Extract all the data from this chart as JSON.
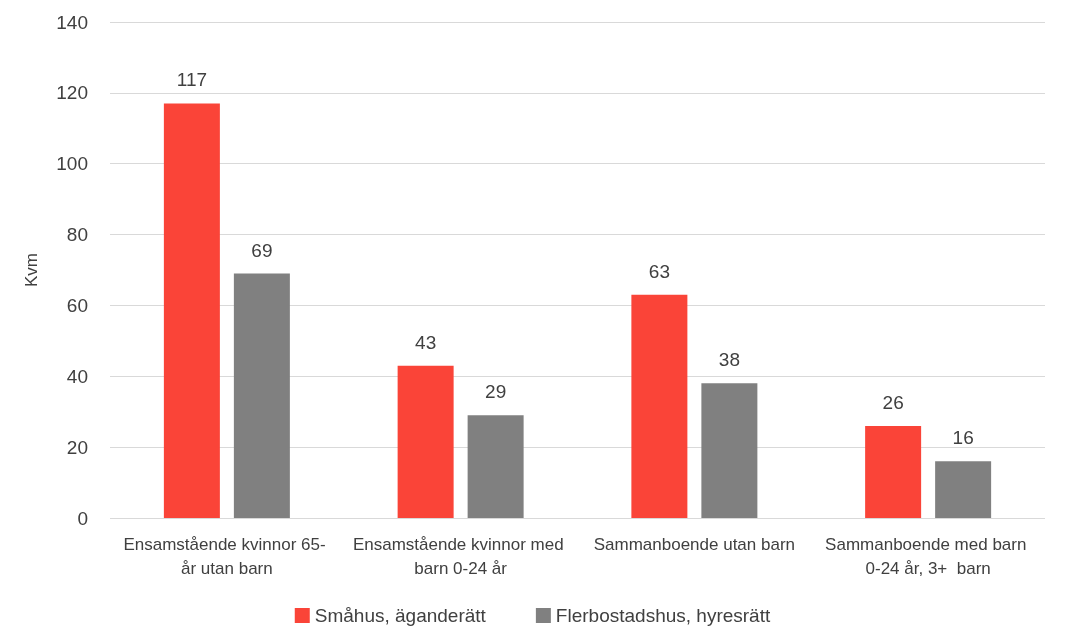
{
  "chart_data": {
    "type": "bar",
    "ylabel": "Kvm",
    "categories": [
      "Ensamstående kvinnor 65- år utan barn",
      "Ensamstående kvinnor med barn 0-24 år",
      "Sammanboende utan barn",
      "Sammanboende med barn 0-24 år, 3+  barn"
    ],
    "series": [
      {
        "name": "Småhus, äganderätt",
        "color": "#fa4438",
        "values": [
          117,
          43,
          63,
          26
        ]
      },
      {
        "name": "Flerbostadshus, hyresrätt",
        "color": "#808080",
        "values": [
          69,
          29,
          38,
          16
        ]
      }
    ],
    "ylim": [
      0,
      140
    ],
    "yticks": [
      0,
      20,
      40,
      60,
      80,
      100,
      120,
      140
    ],
    "grid": "y",
    "legend": "bottom",
    "data_labels": true
  }
}
